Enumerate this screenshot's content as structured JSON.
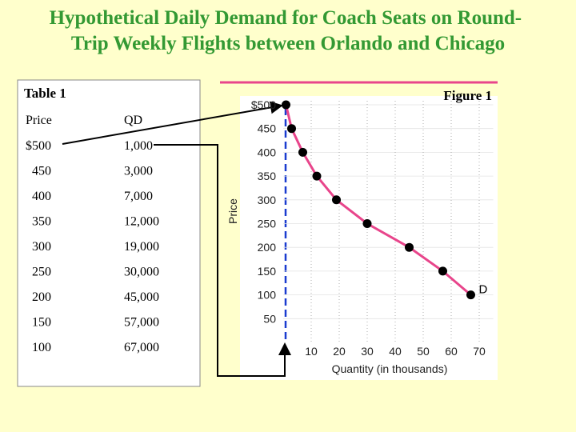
{
  "title": "Hypothetical Daily Demand for Coach Seats on Round-Trip Weekly Flights between Orlando and Chicago",
  "table": {
    "title": "Table 1",
    "columns": [
      "Price",
      "QD"
    ],
    "rows": [
      [
        "$500",
        "1,000"
      ],
      [
        "450",
        "3,000"
      ],
      [
        "400",
        "7,000"
      ],
      [
        "350",
        "12,000"
      ],
      [
        "300",
        "19,000"
      ],
      [
        "250",
        "30,000"
      ],
      [
        "200",
        "45,000"
      ],
      [
        "150",
        "57,000"
      ],
      [
        "100",
        "67,000"
      ]
    ]
  },
  "chart_data": {
    "type": "line",
    "title": "Figure 1",
    "x_label": "Quantity (in thousands)",
    "y_label": "Price",
    "series": [
      {
        "name": "D",
        "color": "#e8458b",
        "x": [
          1,
          3,
          7,
          12,
          19,
          30,
          45,
          57,
          67
        ],
        "values": [
          500,
          450,
          400,
          350,
          300,
          250,
          200,
          150,
          100
        ]
      }
    ],
    "xlim": [
      0,
      75
    ],
    "ylim": [
      0,
      500
    ],
    "xticks": [
      10,
      20,
      30,
      40,
      50,
      60,
      70
    ],
    "yticks": [
      {
        "value": 500,
        "label": "$500"
      },
      450,
      400,
      350,
      300,
      250,
      200,
      150,
      100,
      50
    ],
    "grid": true
  }
}
